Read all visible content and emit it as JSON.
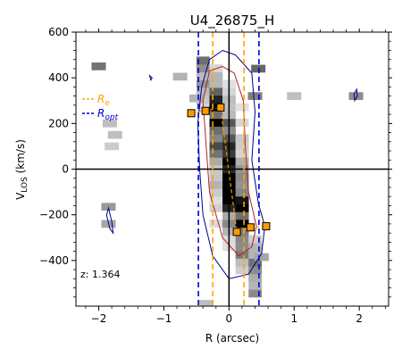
{
  "chart_data": {
    "type": "heatmap",
    "title": "U4_26875_H",
    "xlabel": "R (arcsec)",
    "ylabel_main": "V",
    "ylabel_sub": "LOS",
    "ylabel_unit": " (km/s)",
    "xlim": [
      -2.35,
      2.45
    ],
    "ylim": [
      -600,
      600
    ],
    "xticks": [
      -2,
      -1,
      0,
      1,
      2
    ],
    "yticks": [
      600,
      400,
      200,
      0,
      -200,
      -400
    ],
    "minor_ticks": true,
    "zero_lines": true,
    "annotation": "z: 1.364",
    "legend": {
      "placement": "upper-left",
      "entries": [
        {
          "label_main": "R",
          "label_sub": "e",
          "color": "#ffa500",
          "style": "dashed"
        },
        {
          "label_main": "R",
          "label_sub": "opt",
          "color": "#0000dd",
          "style": "dashed"
        }
      ]
    },
    "vertical_markers": {
      "Re": {
        "x": [
          -0.25,
          0.23
        ],
        "color": "#ffa500"
      },
      "Ropt": {
        "x": [
          -0.47,
          0.46
        ],
        "color": "#0000dd"
      }
    },
    "rotation_curve_points": [
      {
        "x": -0.58,
        "y": 245
      },
      {
        "x": -0.36,
        "y": 255
      },
      {
        "x": -0.13,
        "y": 270
      },
      {
        "x": 0.12,
        "y": -275
      },
      {
        "x": 0.33,
        "y": -255
      },
      {
        "x": 0.57,
        "y": -250
      }
    ],
    "marker_color": "#ff9900",
    "grid": false
  }
}
